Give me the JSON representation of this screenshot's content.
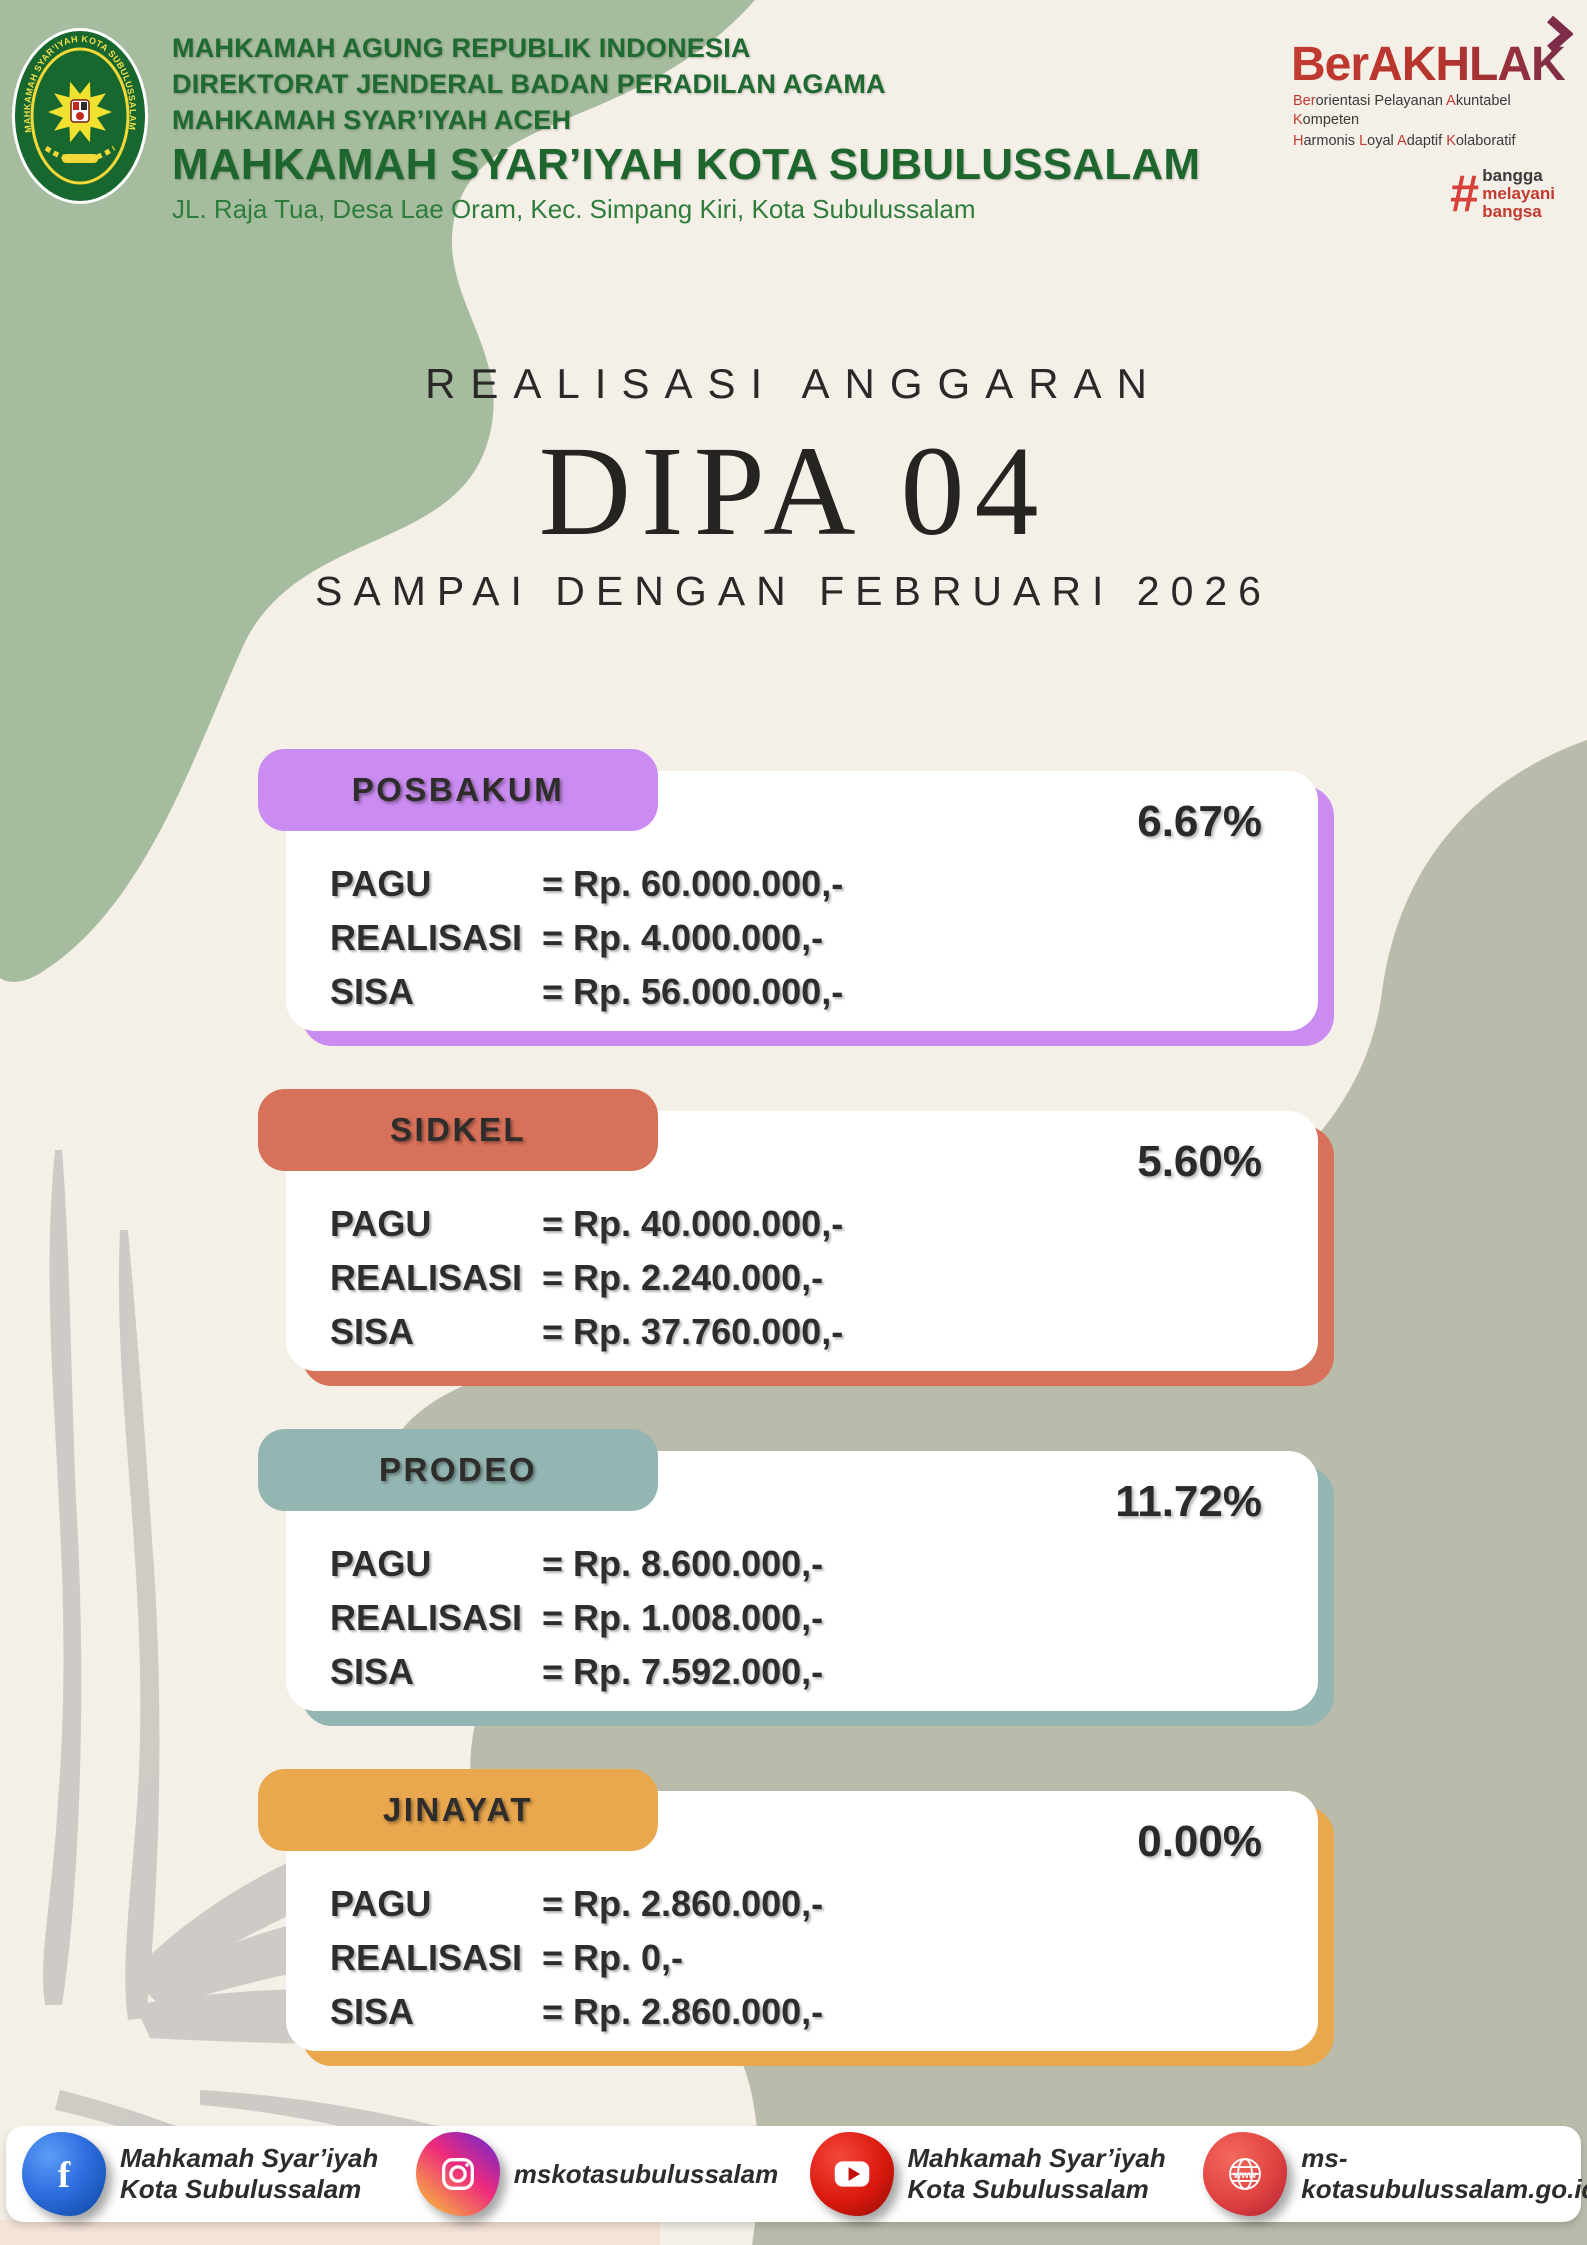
{
  "header": {
    "org_lines": [
      "MAHKAMAH AGUNG REPUBLIK INDONESIA",
      "DIREKTORAT JENDERAL BADAN PERADILAN AGAMA",
      "MAHKAMAH SYAR’IYAH ACEH"
    ],
    "org_name": "MAHKAMAH SYAR’IYAH KOTA SUBULUSSALAM",
    "address": "JL. Raja Tua, Desa Lae Oram, Kec. Simpang Kiri, Kota Subulussalam",
    "emblem_text": "MAHKAMAH SYAR’IYAH KOTA SUBULUSSALAM",
    "berakhlak": {
      "title": "BerAKHLAK",
      "line1_segments": [
        [
          "Ber",
          "red"
        ],
        [
          "orientasi Pelayanan ",
          "dark"
        ],
        [
          "A",
          "red"
        ],
        [
          "kuntabel ",
          "dark"
        ],
        [
          "K",
          "red"
        ],
        [
          "ompeten",
          "dark"
        ]
      ],
      "line2_segments": [
        [
          "H",
          "red"
        ],
        [
          "armonis ",
          "dark"
        ],
        [
          "L",
          "red"
        ],
        [
          "oyal ",
          "dark"
        ],
        [
          "A",
          "red"
        ],
        [
          "daptif ",
          "dark"
        ],
        [
          "K",
          "red"
        ],
        [
          "olaboratif",
          "dark"
        ]
      ],
      "hashtag": "#",
      "tagline_segments": [
        [
          "bangga",
          "dark"
        ],
        [
          "melayani",
          "red"
        ],
        [
          "bangsa",
          "red"
        ]
      ]
    }
  },
  "title": {
    "kicker": "REALISASI ANGGARAN",
    "main": "DIPA 04",
    "subtitle": "SAMPAI DENGAN FEBRUARI 2026"
  },
  "cards": [
    {
      "name": "POSBAKUM",
      "percent": "6.67%",
      "accent": "#ca8cf0",
      "rows": [
        [
          "PAGU",
          "= Rp. 60.000.000,-"
        ],
        [
          "REALISASI",
          "= Rp. 4.000.000,-"
        ],
        [
          "SISA",
          "= Rp. 56.000.000,-"
        ]
      ]
    },
    {
      "name": "SIDKEL",
      "percent": "5.60%",
      "accent": "#d8715a",
      "rows": [
        [
          "PAGU",
          "= Rp. 40.000.000,-"
        ],
        [
          "REALISASI",
          "= Rp. 2.240.000,-"
        ],
        [
          "SISA",
          "= Rp. 37.760.000,-"
        ]
      ]
    },
    {
      "name": "PRODEO",
      "percent": "11.72%",
      "accent": "#94b6b3",
      "rows": [
        [
          "PAGU",
          "= Rp. 8.600.000,-"
        ],
        [
          "REALISASI",
          "= Rp. 1.008.000,-"
        ],
        [
          "SISA",
          "= Rp. 7.592.000,-"
        ]
      ]
    },
    {
      "name": "JINAYAT",
      "percent": "0.00%",
      "accent": "#e9a74e",
      "rows": [
        [
          "PAGU",
          "= Rp. 2.860.000,-"
        ],
        [
          "REALISASI",
          "= Rp. 0,-"
        ],
        [
          "SISA",
          "= Rp. 2.860.000,-"
        ]
      ]
    }
  ],
  "footer": {
    "items": [
      {
        "icon": "facebook-icon",
        "lines": [
          "Mahkamah Syar’iyah",
          "Kota Subulussalam"
        ]
      },
      {
        "icon": "instagram-icon",
        "lines": [
          "mskotasubulussalam"
        ]
      },
      {
        "icon": "youtube-icon",
        "lines": [
          "Mahkamah Syar’iyah",
          "Kota Subulussalam"
        ]
      },
      {
        "icon": "website-icon",
        "lines": [
          "ms-kotasubulussalam.go.id"
        ]
      }
    ]
  },
  "colors": {
    "background": "#f4efe7",
    "green_blob": "#a6bc9e",
    "gray_blob": "#b9bcab",
    "header_green": "#1e6a30",
    "berakhlak_red": "#bf3b31",
    "text_dark": "#2b2927"
  }
}
